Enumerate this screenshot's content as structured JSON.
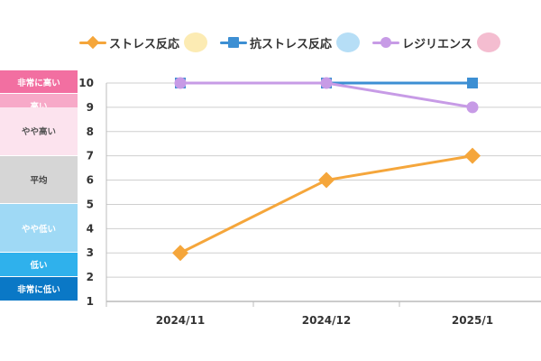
{
  "chart_data": {
    "type": "line",
    "categories": [
      "2024/11",
      "2024/12",
      "2025/1"
    ],
    "series": [
      {
        "name": "ストレス反応",
        "values": [
          3,
          6,
          7
        ],
        "color": "#f5a63b",
        "marker": "diamond"
      },
      {
        "name": "抗ストレス反応",
        "values": [
          10,
          10,
          10
        ],
        "color": "#3d8fd3",
        "marker": "square"
      },
      {
        "name": "レジリエンス",
        "values": [
          10,
          10,
          9
        ],
        "color": "#c79be6",
        "marker": "circle"
      }
    ],
    "ylim": [
      1,
      10
    ],
    "yticks": [
      1,
      2,
      3,
      4,
      5,
      6,
      7,
      8,
      9,
      10
    ],
    "grid": true,
    "legend_position": "top",
    "scale_bands": [
      {
        "label": "非常に高い",
        "from": 10,
        "to": 11,
        "bg": "#f26fa1",
        "fg": "#ffffff"
      },
      {
        "label": "高い",
        "from": 9,
        "to": 10,
        "bg": "#f7a9c8",
        "fg": "#ffffff"
      },
      {
        "label": "やや高い",
        "from": 7,
        "to": 9,
        "bg": "#fce3ee",
        "fg": "#555555"
      },
      {
        "label": "平均",
        "from": 5,
        "to": 7,
        "bg": "#d6d6d6",
        "fg": "#444444"
      },
      {
        "label": "やや低い",
        "from": 3,
        "to": 5,
        "bg": "#9fd9f5",
        "fg": "#ffffff"
      },
      {
        "label": "低い",
        "from": 2,
        "to": 3,
        "bg": "#2fb1ec",
        "fg": "#ffffff"
      },
      {
        "label": "非常に低い",
        "from": 1,
        "to": 2,
        "bg": "#0a78c6",
        "fg": "#ffffff"
      }
    ]
  },
  "legend_decorations": [
    "cloud-mascot-icon",
    "blue-mascot-icon",
    "flag-icon"
  ]
}
